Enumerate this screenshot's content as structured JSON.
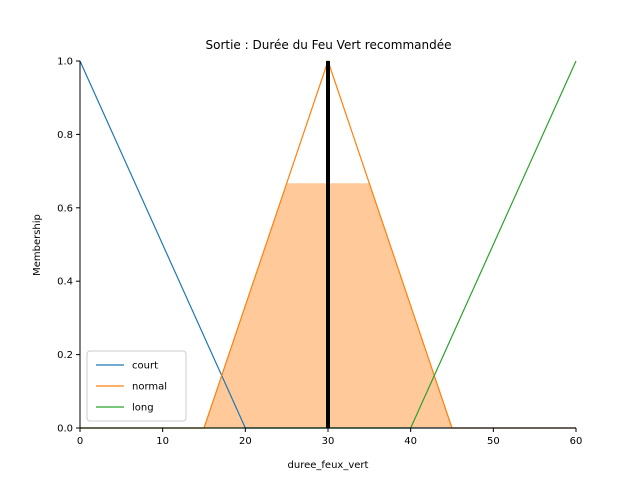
{
  "chart_data": {
    "type": "line",
    "title": "Sortie : Durée du Feu Vert recommandée",
    "xlabel": "duree_feux_vert",
    "ylabel": "Membership",
    "xlim": [
      0,
      60
    ],
    "ylim": [
      0,
      1
    ],
    "xticks": [
      "0",
      "10",
      "20",
      "30",
      "40",
      "50",
      "60"
    ],
    "yticks": [
      "0.0",
      "0.2",
      "0.4",
      "0.6",
      "0.8",
      "1.0"
    ],
    "series": [
      {
        "name": "court",
        "color": "#1f77b4",
        "x": [
          0,
          20,
          60
        ],
        "y": [
          1,
          0,
          0
        ]
      },
      {
        "name": "normal",
        "color": "#ff7f0e",
        "x": [
          0,
          15,
          30,
          45,
          60
        ],
        "y": [
          0,
          0,
          1,
          0,
          0
        ]
      },
      {
        "name": "long",
        "color": "#2ca02c",
        "x": [
          0,
          40,
          60
        ],
        "y": [
          0,
          0,
          1
        ]
      }
    ],
    "aggregated_area": {
      "color": "#ffc999",
      "x": [
        15,
        25,
        35,
        45
      ],
      "y": [
        0,
        0.667,
        0.667,
        0
      ]
    },
    "defuzzified_value": {
      "x": 30,
      "color": "#000000"
    },
    "legend": {
      "placement": "lower-left",
      "entries": [
        "court",
        "normal",
        "long"
      ]
    },
    "grid": false
  }
}
